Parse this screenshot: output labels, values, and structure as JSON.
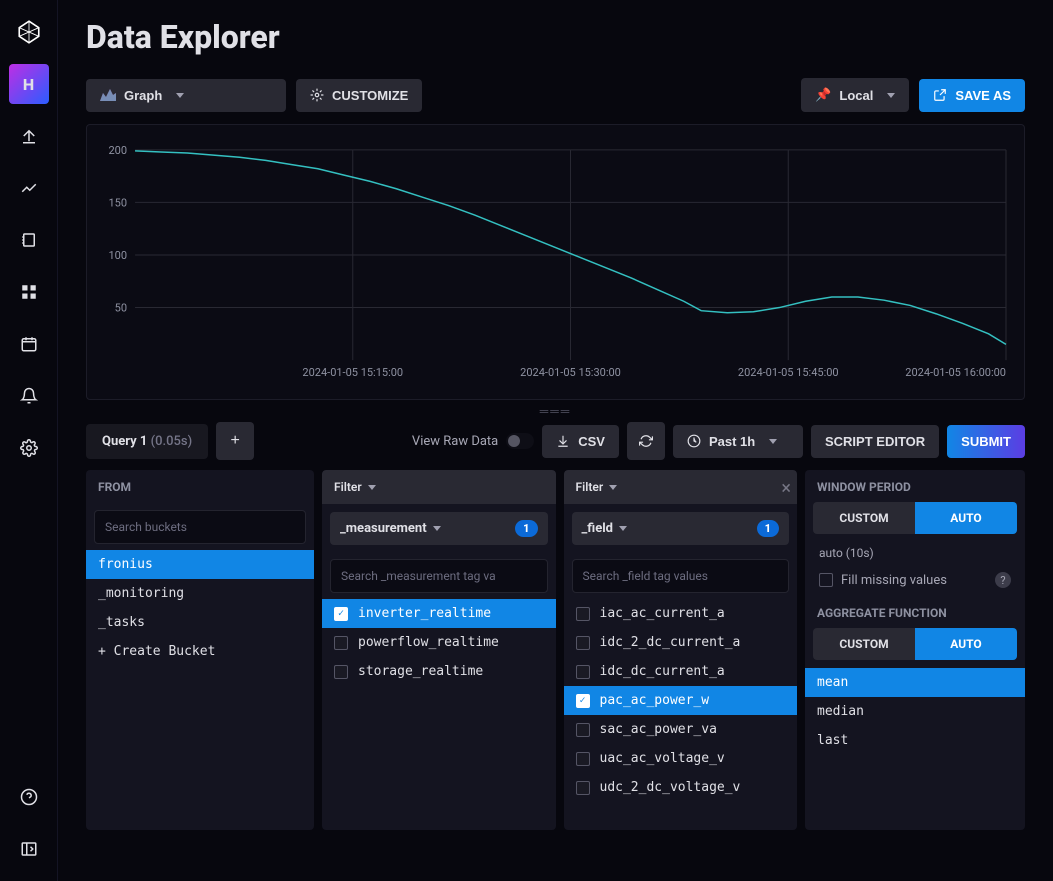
{
  "page": {
    "title": "Data Explorer"
  },
  "nav": {
    "active_label": "H",
    "items": [
      "logo",
      "home",
      "upload",
      "explore",
      "books",
      "dashboard",
      "tasks",
      "alerts",
      "settings"
    ]
  },
  "viz": {
    "type_label": "Graph",
    "customize_label": "CUSTOMIZE",
    "tz_label": "Local",
    "save_label": "SAVE AS"
  },
  "chart": {
    "type": "line",
    "line_color": "#34c0c1",
    "background": "#0b0b14",
    "grid_color": "#292933",
    "ylim": [
      0,
      200
    ],
    "yticks": [
      50,
      100,
      150,
      200
    ],
    "xticks": [
      "2024-01-05 15:15:00",
      "2024-01-05 15:30:00",
      "2024-01-05 15:45:00",
      "2024-01-05 16:00:00"
    ],
    "data": [
      [
        0,
        199
      ],
      [
        3,
        198
      ],
      [
        6,
        197
      ],
      [
        9,
        195
      ],
      [
        12,
        193
      ],
      [
        15,
        190
      ],
      [
        18,
        186
      ],
      [
        21,
        182
      ],
      [
        24,
        176
      ],
      [
        27,
        170
      ],
      [
        30,
        163
      ],
      [
        33,
        155
      ],
      [
        36,
        147
      ],
      [
        39,
        138
      ],
      [
        42,
        128
      ],
      [
        45,
        118
      ],
      [
        48,
        108
      ],
      [
        51,
        98
      ],
      [
        54,
        88
      ],
      [
        57,
        78
      ],
      [
        60,
        67
      ],
      [
        63,
        56
      ],
      [
        65,
        47
      ],
      [
        68,
        45
      ],
      [
        71,
        46
      ],
      [
        74,
        50
      ],
      [
        77,
        56
      ],
      [
        80,
        60
      ],
      [
        83,
        60
      ],
      [
        86,
        57
      ],
      [
        89,
        52
      ],
      [
        92,
        44
      ],
      [
        95,
        35
      ],
      [
        98,
        25
      ],
      [
        100,
        15
      ]
    ]
  },
  "query_bar": {
    "tab_label": "Query 1",
    "tab_time": "(0.05s)",
    "raw_label": "View Raw Data",
    "csv_label": "CSV",
    "range_label": "Past 1h",
    "editor_label": "SCRIPT EDITOR",
    "submit_label": "SUBMIT"
  },
  "from": {
    "header": "FROM",
    "search_placeholder": "Search buckets",
    "items": [
      {
        "label": "fronius",
        "selected": true
      },
      {
        "label": "_monitoring",
        "selected": false
      },
      {
        "label": "_tasks",
        "selected": false
      },
      {
        "label": "+ Create Bucket",
        "selected": false
      }
    ]
  },
  "filter1": {
    "header": "Filter",
    "tag_key": "_measurement",
    "badge": "1",
    "search_placeholder": "Search _measurement tag va",
    "items": [
      {
        "label": "inverter_realtime",
        "selected": true
      },
      {
        "label": "powerflow_realtime",
        "selected": false
      },
      {
        "label": "storage_realtime",
        "selected": false
      }
    ]
  },
  "filter2": {
    "header": "Filter",
    "tag_key": "_field",
    "badge": "1",
    "search_placeholder": "Search _field tag values",
    "items": [
      {
        "label": "iac_ac_current_a",
        "selected": false
      },
      {
        "label": "idc_2_dc_current_a",
        "selected": false
      },
      {
        "label": "idc_dc_current_a",
        "selected": false
      },
      {
        "label": "pac_ac_power_w",
        "selected": true
      },
      {
        "label": "sac_ac_power_va",
        "selected": false
      },
      {
        "label": "uac_ac_voltage_v",
        "selected": false
      },
      {
        "label": "udc_2_dc_voltage_v",
        "selected": false
      }
    ]
  },
  "window": {
    "header": "WINDOW PERIOD",
    "custom_label": "CUSTOM",
    "auto_label": "AUTO",
    "auto_text": "auto (10s)",
    "fill_label": "Fill missing values"
  },
  "agg": {
    "header": "AGGREGATE FUNCTION",
    "custom_label": "CUSTOM",
    "auto_label": "AUTO",
    "items": [
      {
        "label": "mean",
        "selected": true
      },
      {
        "label": "median",
        "selected": false
      },
      {
        "label": "last",
        "selected": false
      }
    ]
  }
}
